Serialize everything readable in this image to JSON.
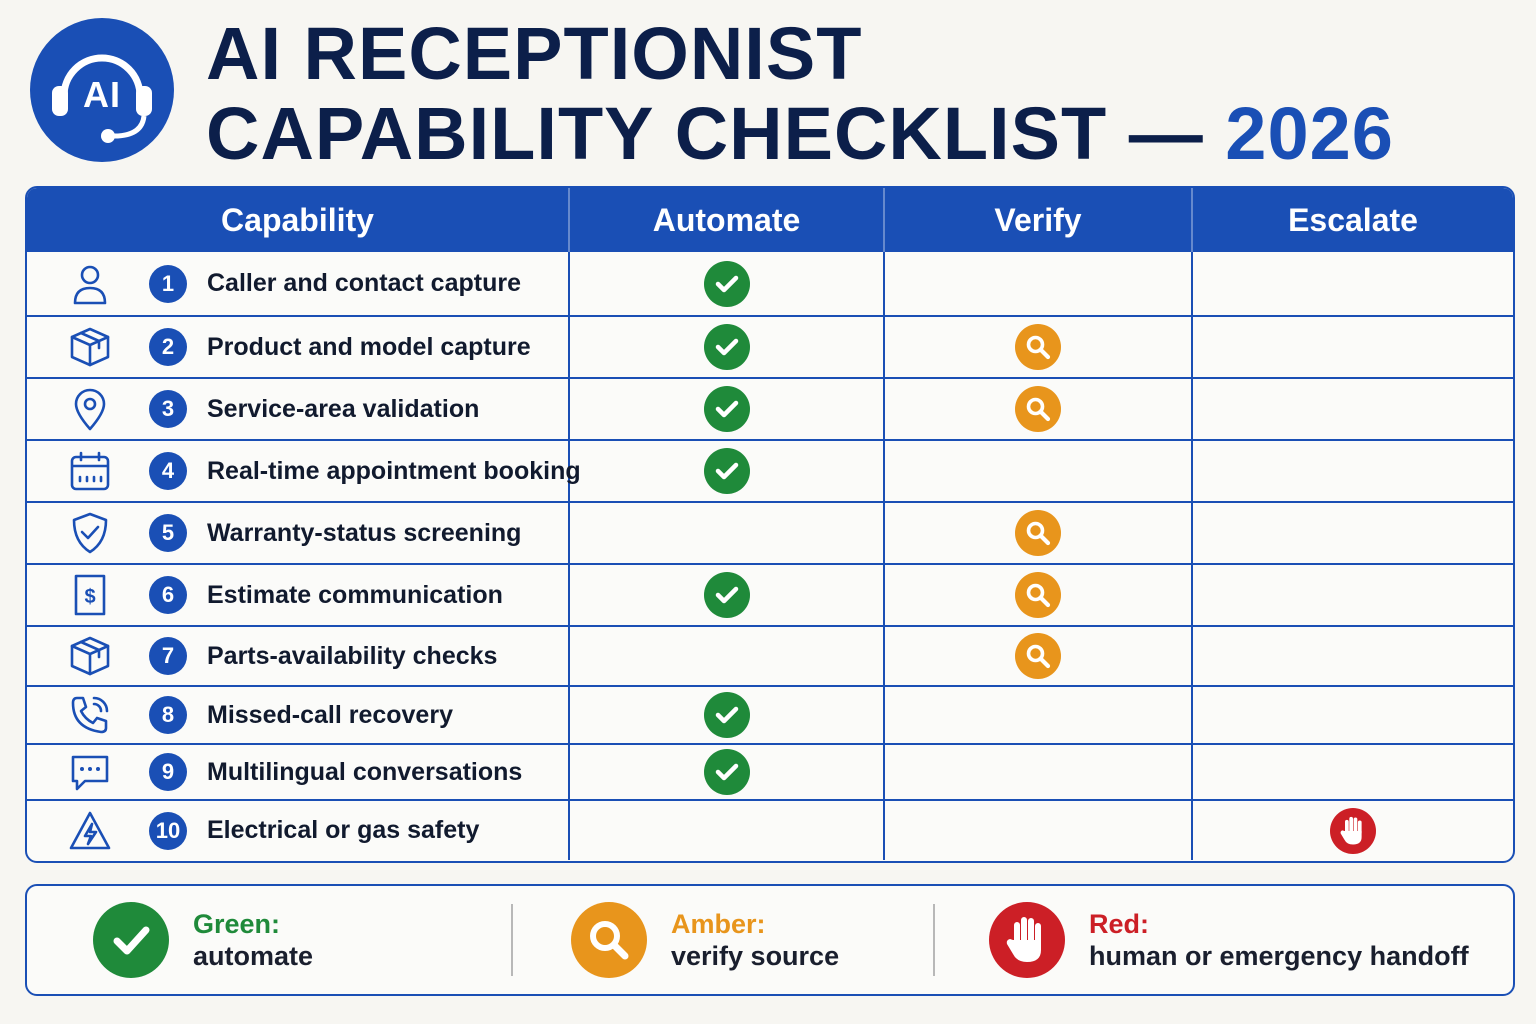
{
  "header": {
    "logo_text": "AI",
    "logo_icon": "headset-icon",
    "title_line1": "AI RECEPTIONIST",
    "title_line2": "CAPABILITY CHECKLIST —",
    "title_year": "2026"
  },
  "table": {
    "columns": [
      "Capability",
      "Automate",
      "Verify",
      "Escalate"
    ],
    "rows": [
      {
        "num": "1",
        "icon": "person-icon",
        "label": "Caller and contact capture",
        "automate": true,
        "verify": false,
        "escalate": false
      },
      {
        "num": "2",
        "icon": "box-icon",
        "label": "Product and model capture",
        "automate": true,
        "verify": true,
        "escalate": false
      },
      {
        "num": "3",
        "icon": "location-pin-icon",
        "label": "Service-area validation",
        "automate": true,
        "verify": true,
        "escalate": false
      },
      {
        "num": "4",
        "icon": "calendar-icon",
        "label": "Real-time appointment booking",
        "automate": true,
        "verify": false,
        "escalate": false
      },
      {
        "num": "5",
        "icon": "shield-check-icon",
        "label": "Warranty-status screening",
        "automate": false,
        "verify": true,
        "escalate": false
      },
      {
        "num": "6",
        "icon": "receipt-dollar-icon",
        "label": "Estimate communication",
        "automate": true,
        "verify": true,
        "escalate": false
      },
      {
        "num": "7",
        "icon": "box-icon",
        "label": "Parts-availability checks",
        "automate": false,
        "verify": true,
        "escalate": false
      },
      {
        "num": "8",
        "icon": "phone-ringing-icon",
        "label": "Missed-call recovery",
        "automate": true,
        "verify": false,
        "escalate": false
      },
      {
        "num": "9",
        "icon": "chat-bubble-icon",
        "label": "Multilingual conversations",
        "automate": true,
        "verify": false,
        "escalate": false
      },
      {
        "num": "10",
        "icon": "warning-lightning-icon",
        "label": "Electrical or gas safety",
        "automate": false,
        "verify": false,
        "escalate": true
      }
    ]
  },
  "legend": [
    {
      "key": "green",
      "title": "Green:",
      "desc": "automate",
      "color": "#1f8a3a",
      "icon": "check-icon"
    },
    {
      "key": "amber",
      "title": "Amber:",
      "desc": "verify source",
      "color": "#e8951c",
      "icon": "magnifier-icon"
    },
    {
      "key": "red",
      "title": "Red:",
      "desc": "human or emergency handoff",
      "color": "#cc1f26",
      "icon": "stop-hand-icon"
    }
  ]
}
